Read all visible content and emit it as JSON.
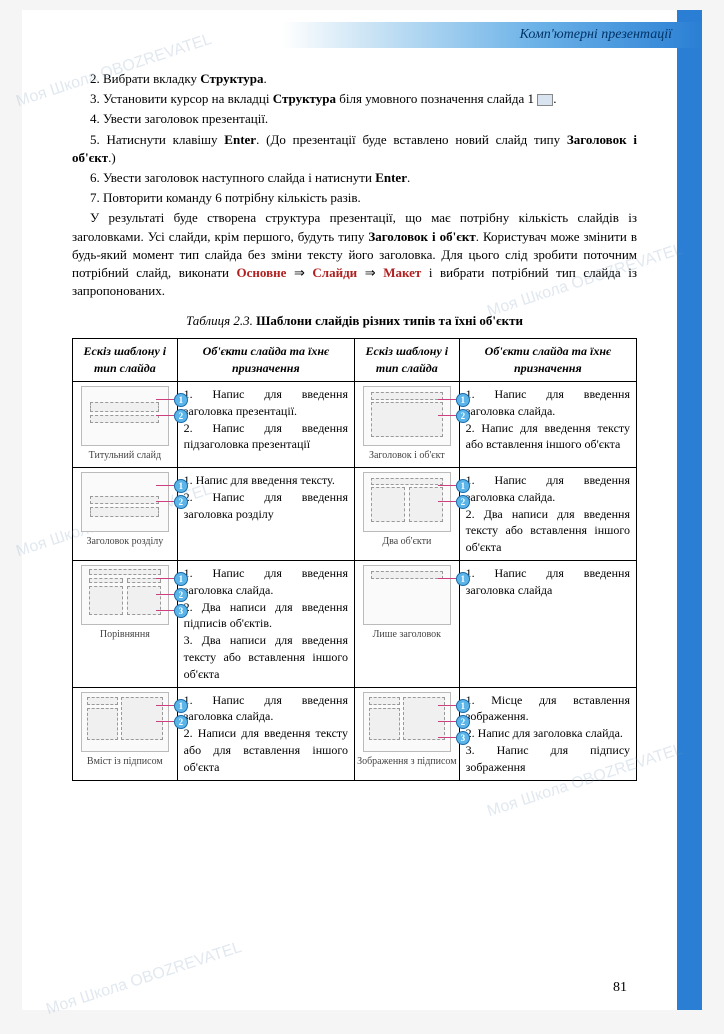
{
  "header": {
    "section_title": "Комп'ютерні презентації"
  },
  "steps": {
    "s2": "2. Вибрати вкладку ",
    "s2b": "Структура",
    "s2end": ".",
    "s3a": "3. Установити курсор на вкладці ",
    "s3b": "Структура",
    "s3c": " біля умовного позначення слайда 1",
    "s3end": ".",
    "s4": "4. Увести заголовок презентації.",
    "s5a": "5. Натиснути клавішу ",
    "s5b": "Enter",
    "s5c": ". (До презентації буде вставлено новий слайд типу ",
    "s5d": "Заголовок і об'єкт",
    "s5e": ".)",
    "s6a": "6. Увести заголовок наступного слайда і натиснути ",
    "s6b": "Enter",
    "s6c": ".",
    "s7": "7. Повторити команду 6 потрібну кількість разів."
  },
  "para": {
    "p1a": "У результаті буде створена структура презентації, що має потрібну кількість слайдів із заголовками. Усі слайди, крім першого, будуть типу ",
    "p1b": "Заголовок і об'єкт",
    "p1c": ". Користувач може змінити в будь-який момент тип слайда без зміни тексту його заголовка. Для цього слід зробити поточним потрібний слайд, виконати ",
    "p1d": "Основне",
    "arrow": " ⇒ ",
    "p1e": "Слайди",
    "p1f": "Макет",
    "p1g": " і вибрати потрібний тип слайда із запропонованих."
  },
  "table": {
    "caption_prefix": "Таблиця 2.3. ",
    "caption_bold": "Шаблони слайдів різних типів та їхні об'єкти",
    "headers": {
      "h1": "Ескіз шаблону і тип слайда",
      "h2": "Об'єкти слайда та їхнє призначення",
      "h3": "Ескіз шаблону і тип слайда",
      "h4": "Об'єкти слайда та їхнє призначення"
    },
    "rows": [
      {
        "left_label": "Титульний слайд",
        "left_markers": [
          "1",
          "2"
        ],
        "left_desc": "1. Напис для введення заголовка презентації.\n2. Напис для введення підзаголовка презентації",
        "right_label": "Заголовок і об'єкт",
        "right_markers": [
          "1",
          "2"
        ],
        "right_desc": "1. Напис для введення заголовка слайда.\n2. Напис для введення тексту або вставлення іншого об'єкта"
      },
      {
        "left_label": "Заголовок розділу",
        "left_markers": [
          "1",
          "2"
        ],
        "left_desc": "1. Напис для введення тексту.\n2. Напис для введення заголовка розділу",
        "right_label": "Два об'єкти",
        "right_markers": [
          "1",
          "2"
        ],
        "right_desc": "1. Напис для введення заголовка слайда.\n2. Два написи для введення тексту або вставлення іншого об'єкта"
      },
      {
        "left_label": "Порівняння",
        "left_markers": [
          "1",
          "2",
          "3"
        ],
        "left_desc": "1. Напис для введення заголовка слайда.\n2. Два написи для введення підписів об'єктів.\n3. Два написи для введення тексту або вставлення іншого об'єкта",
        "right_label": "Лише заголовок",
        "right_markers": [
          "1"
        ],
        "right_desc": "1. Напис для введення заголовка слайда"
      },
      {
        "left_label": "Вміст із підписом",
        "left_markers": [
          "1",
          "2"
        ],
        "left_desc": "1. Напис для введення заголовка слайда.\n2. Написи для введення тексту або для вставлення іншого об'єкта",
        "right_label": "Зображення з підписом",
        "right_markers": [
          "1",
          "2",
          "3"
        ],
        "right_desc": "1. Місце для вставлення зображення.\n2. Напис для заголовка слайда.\n3. Напис для підпису зображення"
      }
    ]
  },
  "pagenum": "81",
  "watermark": "Моя Школа OBOZREVATEL",
  "colors": {
    "accent": "#2a7fd4",
    "marker_bg": "#5bb5e8",
    "marker_border": "#1a6aa8",
    "leader": "#cc4080",
    "red_text": "#b02020"
  }
}
